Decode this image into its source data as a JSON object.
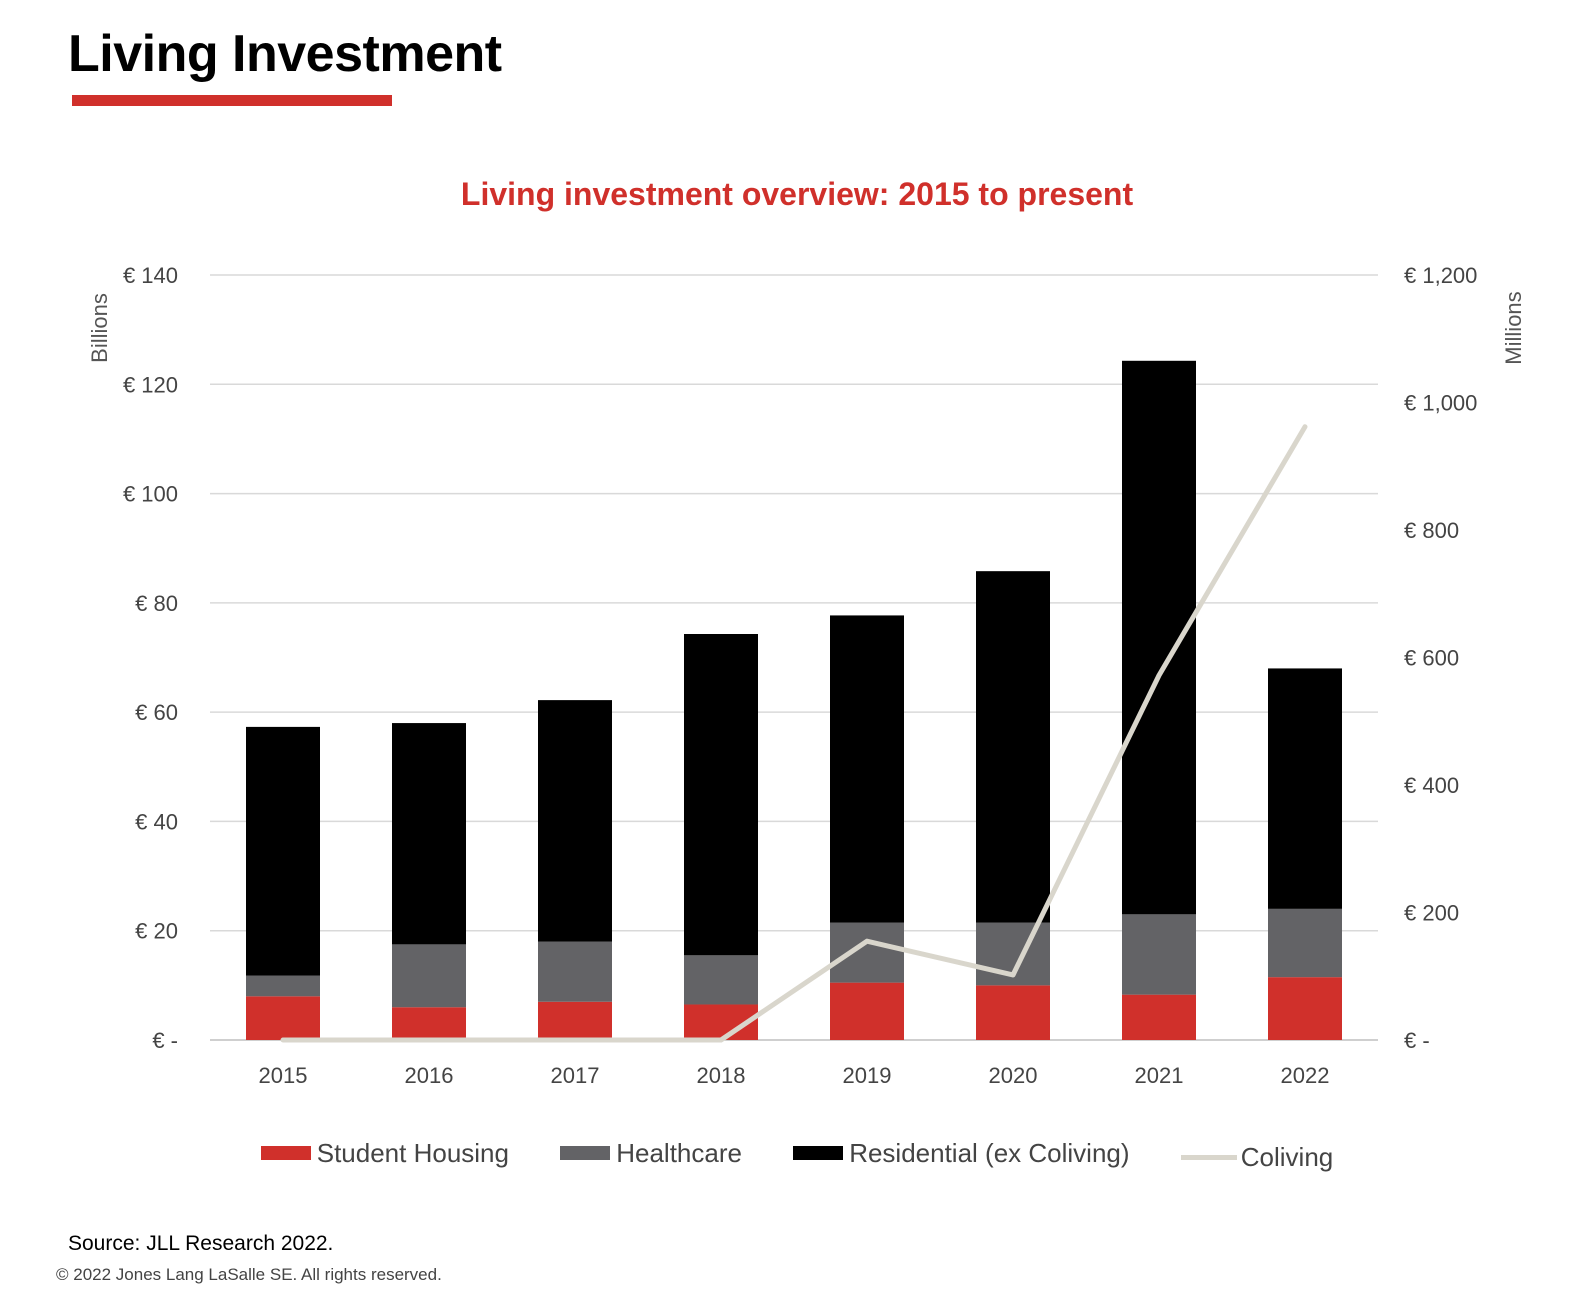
{
  "page": {
    "title": "Living Investment",
    "source": "Source: JLL Research 2022.",
    "copyright": "© 2022 Jones Lang LaSalle SE. All rights reserved."
  },
  "colors": {
    "accent": "#d0302b",
    "student_housing": "#d0302b",
    "healthcare": "#636366",
    "residential": "#000000",
    "coliving": "#d9d6cc",
    "gridline": "#d9d9d9"
  },
  "chart_data": {
    "type": "bar",
    "stacked": true,
    "title": "Living investment overview: 2015 to present",
    "categories": [
      "2015",
      "2016",
      "2017",
      "2018",
      "2019",
      "2020",
      "2021",
      "2022"
    ],
    "series": [
      {
        "name": "Student Housing",
        "axis": "left",
        "values": [
          8,
          6,
          7,
          6.5,
          10.5,
          10,
          8.3,
          11.5
        ]
      },
      {
        "name": "Healthcare",
        "axis": "left",
        "values": [
          3.8,
          11.5,
          11,
          9,
          11,
          11.5,
          14.7,
          12.5
        ]
      },
      {
        "name": "Residential (ex Coliving)",
        "axis": "left",
        "values": [
          45.5,
          40.5,
          44.2,
          58.8,
          56.2,
          64.3,
          101.3,
          44
        ]
      },
      {
        "name": "Coliving",
        "type": "line",
        "axis": "right",
        "values": [
          0,
          0,
          0,
          0,
          155,
          102,
          572,
          962
        ]
      }
    ],
    "y_left": {
      "label": "Billions",
      "ylim": [
        0,
        140
      ],
      "ticks": [
        0,
        20,
        40,
        60,
        80,
        100,
        120,
        140
      ],
      "tick_labels": [
        "€ -",
        "€ 20",
        "€ 40",
        "€ 60",
        "€ 80",
        "€ 100",
        "€ 120",
        "€ 140"
      ]
    },
    "y_right": {
      "label": "Millions",
      "ylim": [
        0,
        1200
      ],
      "ticks": [
        0,
        200,
        400,
        600,
        800,
        1000,
        1200
      ],
      "tick_labels": [
        "€ -",
        "€ 200",
        "€ 400",
        "€ 600",
        "€ 800",
        "€ 1,000",
        "€ 1,200"
      ]
    },
    "grid": true,
    "legend": {
      "position": "bottom",
      "items": [
        "Student Housing",
        "Healthcare",
        "Residential (ex Coliving)",
        "Coliving"
      ]
    }
  }
}
